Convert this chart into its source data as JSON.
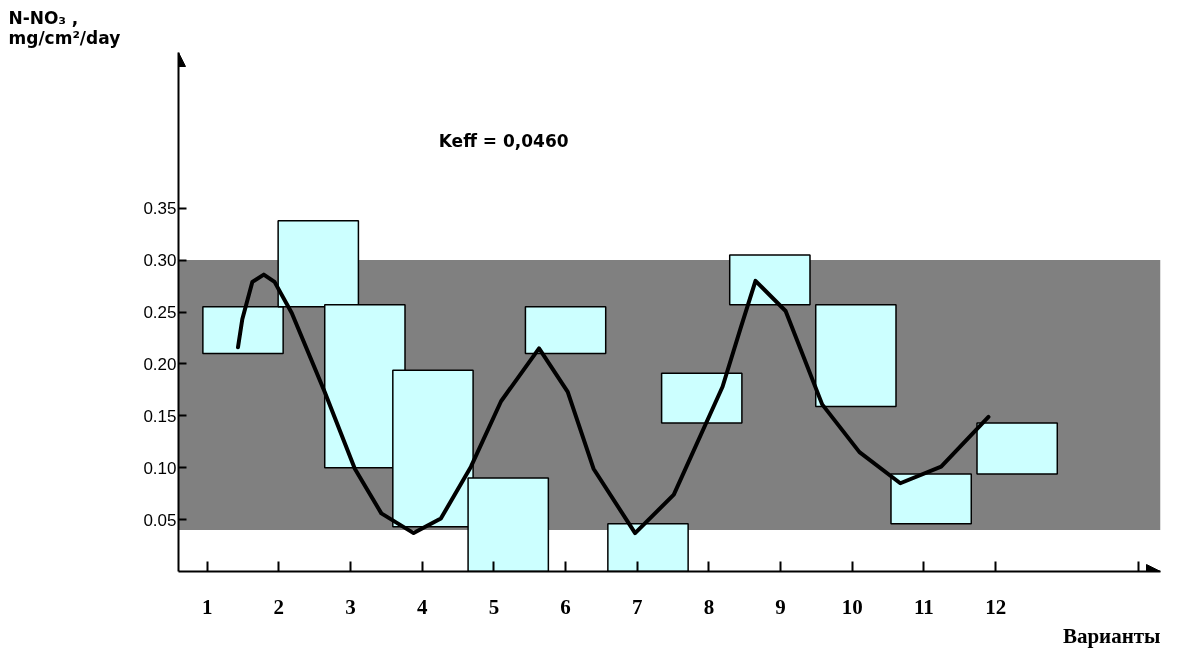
{
  "chart_data": {
    "type": "bar",
    "ylabel": "N-NO₃ ,\nmg/cm²/day",
    "xlabel": "Варианты",
    "annotations": [
      "Keff = 0,0460"
    ],
    "x": [
      1.5,
      2.55,
      3.2,
      4.15,
      5.2,
      6.0,
      7.15,
      7.9,
      8.85,
      10.05,
      11.1,
      12.3
    ],
    "xlim": [
      0.6,
      14.3
    ],
    "xticks": [
      1,
      2,
      3,
      4,
      5,
      6,
      7,
      8,
      9,
      10,
      11,
      12,
      {
        "value": 14,
        "label": null
      }
    ],
    "ylim": [
      0,
      0.5
    ],
    "yticks": [
      0.05,
      {
        "value": 0.1,
        "label": "0.10"
      },
      0.15,
      {
        "value": 0.2,
        "label": "0.20"
      },
      0.25,
      {
        "value": 0.3,
        "label": "0.30"
      },
      0.35
    ],
    "grid": false,
    "bands": [
      {
        "axis": "y",
        "from": 0.04,
        "to": 0.3,
        "color": "#808080"
      }
    ],
    "series": [
      {
        "color": "#ccffff",
        "base": [
          0.21,
          0.255,
          0.1,
          0.043,
          0,
          0.21,
          0,
          0.143,
          0.257,
          0.159,
          0.046,
          0.094
        ],
        "values": [
          0.045,
          0.083,
          0.157,
          0.151,
          0.09,
          0.045,
          0.046,
          0.048,
          0.048,
          0.098,
          0.048,
          0.049
        ]
      },
      {
        "type": "line",
        "color": "#000000",
        "x": [
          1.43,
          1.49,
          1.63,
          1.79,
          1.94,
          2.18,
          2.64,
          3.06,
          3.43,
          3.88,
          4.26,
          4.68,
          5.1,
          5.63,
          6.03,
          6.39,
          6.97,
          7.51,
          8.19,
          8.44,
          8.65,
          9.07,
          9.58,
          10.1,
          10.67,
          11.24,
          11.9
        ],
        "values": [
          0.216,
          0.243,
          0.279,
          0.286,
          0.279,
          0.249,
          0.173,
          0.099,
          0.056,
          0.037,
          0.051,
          0.101,
          0.164,
          0.215,
          0.173,
          0.099,
          0.037,
          0.074,
          0.178,
          0.234,
          0.28,
          0.251,
          0.161,
          0.115,
          0.085,
          0.101,
          0.149
        ]
      }
    ]
  }
}
